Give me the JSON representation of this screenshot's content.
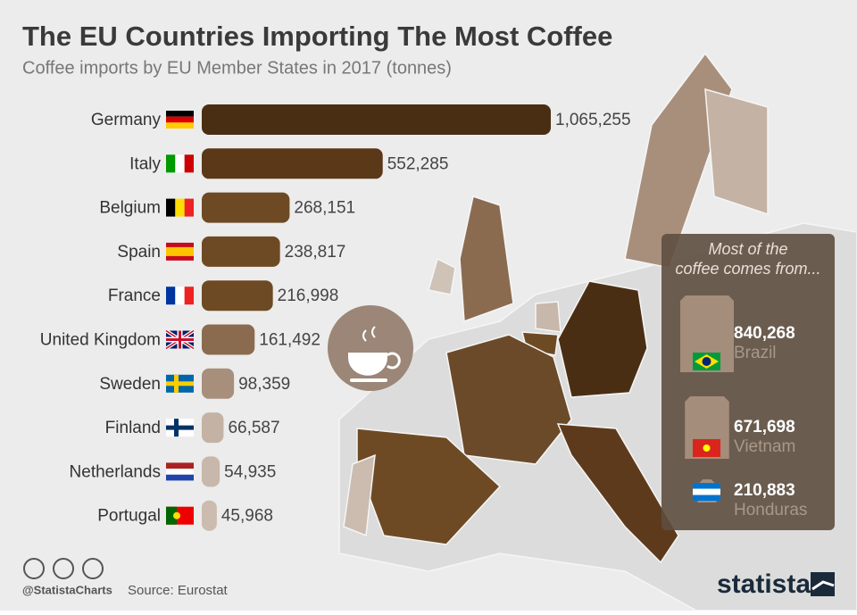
{
  "chart_data": {
    "type": "bar",
    "orientation": "horizontal",
    "title": "The EU Countries Importing The Most Coffee",
    "subtitle": "Coffee imports by EU Member States in 2017 (tonnes)",
    "categories": [
      "Germany",
      "Italy",
      "Belgium",
      "Spain",
      "France",
      "United Kingdom",
      "Sweden",
      "Finland",
      "Netherlands",
      "Portugal"
    ],
    "values": [
      1065255,
      552285,
      268151,
      238817,
      216998,
      161492,
      98359,
      66587,
      54935,
      45968
    ],
    "value_labels": [
      "1,065,255",
      "552,285",
      "268,151",
      "238,817",
      "216,998",
      "161,492",
      "98,359",
      "66,587",
      "54,935",
      "45,968"
    ],
    "colors": [
      "#4a2e14",
      "#5a3818",
      "#6e4a24",
      "#6e4a24",
      "#6e4a24",
      "#8b6b50",
      "#a88f7c",
      "#c4b2a4",
      "#c8b8ab",
      "#cbbcaf"
    ]
  },
  "sources": {
    "title": "Most of the coffee comes from...",
    "items": [
      {
        "value": 840268,
        "label": "840,268",
        "country": "Brazil"
      },
      {
        "value": 671698,
        "label": "671,698",
        "country": "Vietnam"
      },
      {
        "value": 210883,
        "label": "210,883",
        "country": "Honduras"
      }
    ]
  },
  "footer": {
    "handle": "@StatistaCharts",
    "source": "Source: Eurostat",
    "brand": "statista"
  }
}
